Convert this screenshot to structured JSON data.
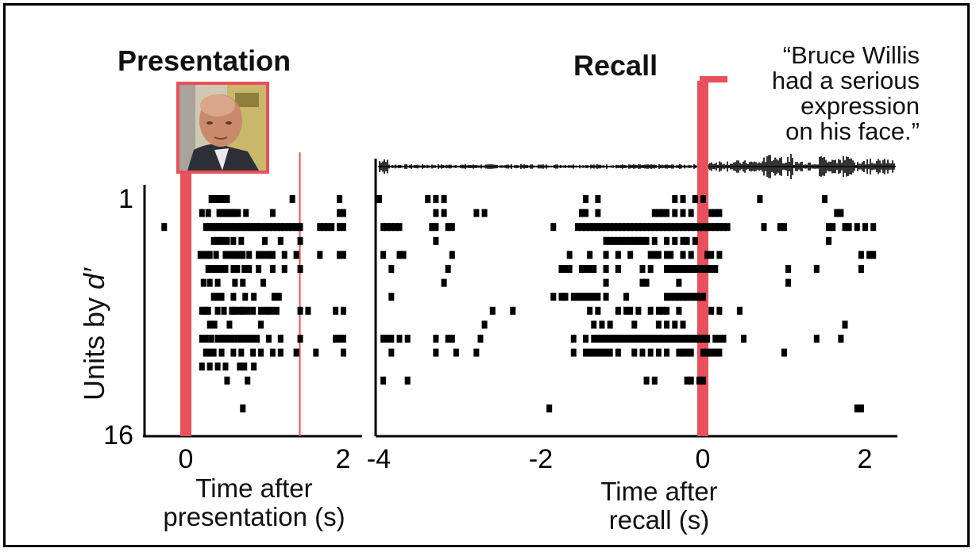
{
  "colors": {
    "accent": "#e8505b",
    "ink": "#000000"
  },
  "quote": [
    "“Bruce Willis",
    "had a serious",
    "expression",
    "on his face.”"
  ],
  "photo_icon": "face-photo-icon",
  "chart_data": [
    {
      "type": "scatter",
      "title": "Presentation",
      "xlabel": "Time after presentation (s)",
      "xlabel_lines": [
        "Time after",
        "presentation (s)"
      ],
      "ylabel": "Units by d′",
      "ylabel_main": "Units by ",
      "ylabel_sym": "d′",
      "xlim": [
        -0.5,
        2.4
      ],
      "ylim": [
        1,
        16
      ],
      "xticks": [
        0,
        2
      ],
      "xtick_labels": [
        "0",
        "2"
      ],
      "yticks": [
        1,
        16
      ],
      "ytick_labels": [
        "1",
        "16"
      ],
      "markers": [
        {
          "name": "stimulus onset",
          "x": 0.0,
          "style": "thick"
        },
        {
          "name": "stimulus offset",
          "x": 1.45,
          "style": "thin"
        }
      ],
      "units": [
        [
          0.32,
          0.36,
          0.4,
          0.44,
          0.48,
          0.52,
          1.35,
          1.95
        ],
        [
          0.2,
          0.28,
          0.42,
          0.46,
          0.5,
          0.54,
          0.58,
          0.62,
          0.66,
          0.76,
          1.1,
          1.95,
          2.0
        ],
        [
          -0.28,
          0.25,
          0.3,
          0.34,
          0.38,
          0.42,
          0.46,
          0.5,
          0.54,
          0.58,
          0.62,
          0.66,
          0.7,
          0.74,
          0.78,
          0.82,
          0.86,
          0.9,
          0.94,
          1.0,
          1.05,
          1.1,
          1.15,
          1.2,
          1.25,
          1.3,
          1.35,
          1.4,
          1.45,
          1.7,
          1.75,
          1.8,
          1.85,
          1.95,
          2.0
        ],
        [
          0.35,
          0.4,
          0.45,
          0.52,
          0.6,
          0.7,
          1.0,
          1.2,
          1.45
        ],
        [
          0.18,
          0.22,
          0.26,
          0.3,
          0.38,
          0.5,
          0.56,
          0.62,
          0.68,
          0.72,
          0.8,
          0.92,
          0.98,
          1.05,
          1.1,
          1.25,
          1.4,
          1.7,
          1.95,
          2.0
        ],
        [
          0.28,
          0.32,
          0.36,
          0.4,
          0.44,
          0.5,
          0.6,
          0.65,
          0.74,
          0.8,
          0.92,
          1.1,
          1.25,
          1.45
        ],
        [
          0.22,
          0.3,
          0.4,
          0.62,
          0.72,
          0.98
        ],
        [
          0.35,
          0.4,
          0.45,
          0.6,
          0.75,
          0.86,
          1.12,
          1.18
        ],
        [
          0.2,
          0.24,
          0.28,
          0.4,
          0.48,
          0.58,
          0.62,
          0.68,
          0.72,
          0.78,
          0.85,
          0.95,
          1.02,
          1.08,
          1.15,
          1.45,
          1.55,
          1.9,
          2.0
        ],
        [
          0.3,
          0.36,
          0.55,
          0.95
        ],
        [
          0.2,
          0.22,
          0.25,
          0.32,
          0.4,
          0.45,
          0.52,
          0.58,
          0.65,
          0.7,
          0.75,
          0.8,
          0.85,
          0.9,
          1.05,
          1.2,
          1.45,
          1.9,
          1.95,
          2.0
        ],
        [
          0.25,
          0.3,
          0.35,
          0.45,
          0.6,
          0.7,
          0.85,
          0.95,
          1.1,
          1.2,
          1.4,
          1.65,
          2.0
        ],
        [
          0.2,
          0.3,
          0.4,
          0.5,
          0.68,
          0.74,
          0.86
        ],
        [
          0.52,
          0.78
        ],
        [],
        [
          0.72
        ]
      ]
    },
    {
      "type": "scatter",
      "title": "Recall",
      "xlabel": "Time after recall (s)",
      "xlabel_lines": [
        "Time after",
        "recall (s)"
      ],
      "xlim": [
        -4.1,
        2.25
      ],
      "ylim": [
        1,
        16
      ],
      "xticks": [
        -4,
        -2,
        0,
        2
      ],
      "xtick_labels": [
        "-4",
        "-2",
        "0",
        "2"
      ],
      "markers": [
        {
          "name": "recall onset",
          "x": 0.0,
          "style": "thick"
        }
      ],
      "units": [
        [
          -4.0,
          -3.4,
          -3.3,
          -3.2,
          -1.45,
          -1.3,
          -0.35,
          -0.25,
          -0.1,
          0.0,
          0.7,
          1.5
        ],
        [
          -3.3,
          -3.2,
          -2.8,
          -2.7,
          -1.5,
          -1.45,
          -1.3,
          -0.6,
          -0.55,
          -0.5,
          -0.45,
          -0.35,
          -0.25,
          -0.15,
          0.1,
          0.15,
          0.2,
          1.65,
          1.7
        ],
        [
          -3.95,
          -3.9,
          -3.85,
          -3.8,
          -3.75,
          -3.35,
          -3.3,
          -3.15,
          -3.1,
          -1.85,
          -1.55,
          -1.5,
          -1.45,
          -1.4,
          -1.35,
          -1.3,
          -1.25,
          -1.2,
          -1.15,
          -1.1,
          -1.05,
          -1.0,
          -0.95,
          -0.9,
          -0.85,
          -0.8,
          -0.75,
          -0.7,
          -0.65,
          -0.6,
          -0.55,
          -0.5,
          -0.45,
          -0.4,
          -0.35,
          -0.3,
          -0.25,
          -0.2,
          -0.15,
          -0.1,
          -0.05,
          0.0,
          0.05,
          0.1,
          0.15,
          0.2,
          0.25,
          0.3,
          0.75,
          0.95,
          1.0,
          1.55,
          1.6,
          1.75,
          1.8,
          1.9,
          2.0,
          2.1
        ],
        [
          -3.3,
          -1.2,
          -1.15,
          -1.1,
          -1.05,
          -1.0,
          -0.95,
          -0.9,
          -0.85,
          -0.8,
          -0.75,
          -0.7,
          -0.6,
          -0.45,
          -0.35,
          -0.25,
          -0.2,
          -0.1,
          1.55
        ],
        [
          -3.95,
          -3.75,
          -3.7,
          -3.1,
          -1.65,
          -1.4,
          -1.2,
          -1.05,
          -0.9,
          -0.65,
          -0.6,
          -0.55,
          -0.45,
          -0.4,
          -0.25,
          -0.15,
          0.05,
          0.1,
          0.2,
          1.95,
          2.05,
          2.1
        ],
        [
          -3.85,
          -3.15,
          -1.75,
          -1.7,
          -1.65,
          -1.5,
          -1.45,
          -1.4,
          -1.35,
          -1.2,
          -1.05,
          -0.75,
          -0.65,
          -0.45,
          -0.4,
          -0.35,
          -0.3,
          -0.25,
          -0.2,
          -0.15,
          -0.1,
          -0.05,
          0.0,
          0.05,
          0.1,
          0.15,
          1.05,
          1.4,
          1.95
        ],
        [
          -3.2,
          -1.2,
          -0.75,
          -0.7,
          -0.3,
          1.05
        ],
        [
          -3.85,
          -1.85,
          -1.75,
          -1.7,
          -1.6,
          -1.55,
          -1.5,
          -1.45,
          -1.4,
          -1.35,
          -1.3,
          -1.2,
          -0.95,
          -0.45,
          -0.4,
          -0.35,
          -0.3,
          -0.25,
          -0.2,
          -0.15,
          -0.1,
          -0.05,
          0.0
        ],
        [
          -2.6,
          -2.35,
          -1.4,
          -1.3,
          -1.05,
          -0.95,
          -0.9,
          -0.8,
          -0.65,
          -0.55,
          -0.5,
          -0.45,
          -0.3,
          0.1,
          0.2,
          0.45
        ],
        [
          -2.7,
          -1.35,
          -1.25,
          -1.15,
          -0.85,
          -0.55,
          -0.45,
          -0.35,
          -0.25,
          1.75
        ],
        [
          -3.95,
          -3.9,
          -3.85,
          -3.75,
          -3.65,
          -3.3,
          -3.15,
          -3.1,
          -2.75,
          -1.6,
          -1.45,
          -1.35,
          -1.3,
          -1.25,
          -1.2,
          -1.15,
          -1.1,
          -1.05,
          -1.0,
          -0.95,
          -0.9,
          -0.85,
          -0.8,
          -0.75,
          -0.7,
          -0.65,
          -0.6,
          -0.55,
          -0.5,
          -0.45,
          -0.4,
          -0.35,
          -0.3,
          -0.25,
          -0.2,
          -0.15,
          -0.1,
          -0.05,
          0.0,
          0.05,
          0.15,
          0.2,
          0.25,
          0.5,
          1.4,
          1.7
        ],
        [
          -3.85,
          -3.3,
          -3.05,
          -2.8,
          -1.6,
          -1.45,
          -1.4,
          -1.35,
          -1.3,
          -1.25,
          -1.2,
          -1.15,
          -1.05,
          -0.85,
          -0.75,
          -0.65,
          -0.55,
          -0.45,
          -0.3,
          -0.25,
          -0.2,
          -0.15,
          0.0,
          0.05,
          0.1,
          0.15,
          0.2,
          1.0
        ],
        [],
        [
          -3.95,
          -3.65,
          -0.7,
          -0.6,
          -0.2,
          -0.15,
          -0.05,
          0.0
        ],
        [],
        [
          -1.9,
          1.9,
          1.95
        ]
      ]
    }
  ]
}
